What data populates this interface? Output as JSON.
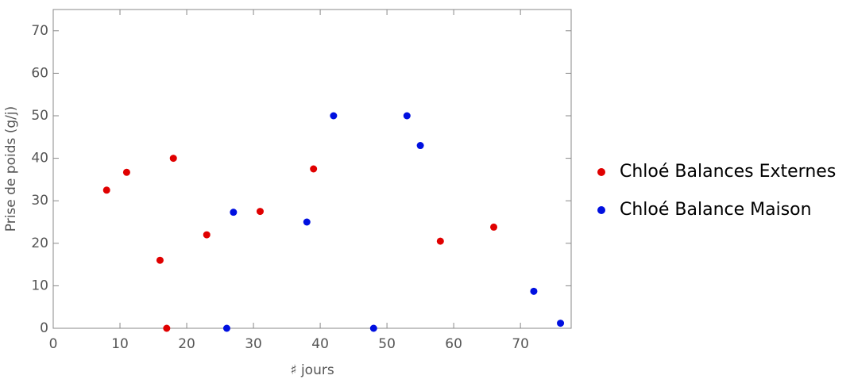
{
  "chart_data": {
    "type": "scatter",
    "x_label": "♯ jours",
    "y_label": "Prise de poids (g/j)",
    "xlim": [
      0,
      77.6
    ],
    "ylim": [
      0,
      75
    ],
    "xticks": [
      0,
      10,
      20,
      30,
      40,
      50,
      60,
      70
    ],
    "yticks": [
      0,
      10,
      20,
      30,
      40,
      50,
      60,
      70
    ],
    "legend": "right",
    "series": [
      {
        "name": "Chloé Balances Externes",
        "color": "#e00000",
        "x": [
          8,
          11,
          16,
          17,
          18,
          23,
          31,
          39,
          58,
          66
        ],
        "values": [
          32.5,
          36.7,
          16,
          0,
          40,
          22,
          27.5,
          37.5,
          20.5,
          23.8
        ]
      },
      {
        "name": "Chloé Balance Maison",
        "color": "#0010e0",
        "x": [
          26,
          27,
          38,
          42,
          48,
          53,
          55,
          72,
          76
        ],
        "values": [
          0,
          27.3,
          25,
          50,
          0,
          50,
          43,
          8.7,
          1.2
        ]
      }
    ]
  }
}
